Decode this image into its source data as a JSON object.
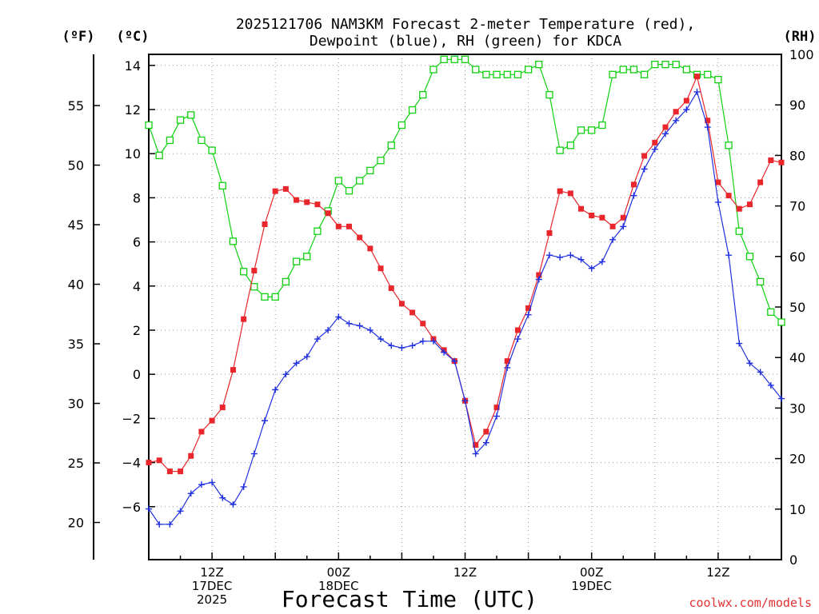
{
  "chart_data": {
    "type": "line",
    "title_lines": [
      "2025121706 NAM3KM Forecast 2-meter Temperature (red),",
      "Dewpoint (blue), RH (green) for KDCA"
    ],
    "xlabel": "Forecast Time (UTC)",
    "credit": "coolwx.com/models",
    "colors": {
      "temperature": "#e8262b",
      "dewpoint": "#2030e0",
      "rh": "#10d010",
      "grid": "#9a9a9a",
      "credit": "#e23030"
    },
    "left_axis_f": {
      "label": "(ºF)",
      "range": [
        16.88,
        59.3
      ],
      "ticks": [
        20,
        25,
        30,
        35,
        40,
        45,
        50,
        55
      ]
    },
    "left_axis_c": {
      "label": "(ºC)",
      "range": [
        -8.4,
        14.5
      ],
      "ticks": [
        -6,
        -4,
        -2,
        0,
        2,
        4,
        6,
        8,
        10,
        12,
        14
      ]
    },
    "right_axis": {
      "label": "(RH)",
      "range": [
        0,
        100
      ],
      "ticks": [
        0,
        10,
        20,
        30,
        40,
        50,
        60,
        70,
        80,
        90,
        100
      ]
    },
    "x_range": [
      0,
      60
    ],
    "x_ticks": [
      {
        "x": 6,
        "lines": [
          "12Z",
          "17DEC",
          "2025"
        ]
      },
      {
        "x": 18,
        "lines": [
          "00Z",
          "18DEC"
        ]
      },
      {
        "x": 30,
        "lines": [
          "12Z"
        ]
      },
      {
        "x": 42,
        "lines": [
          "00Z",
          "19DEC"
        ]
      },
      {
        "x": 54,
        "lines": [
          "12Z"
        ]
      }
    ],
    "x_grid": [
      6,
      12,
      18,
      24,
      30,
      36,
      42,
      48,
      54
    ],
    "y_grid_c": [
      -6,
      -4,
      -2,
      0,
      2,
      4,
      6,
      8,
      10,
      12,
      14
    ],
    "x": [
      0,
      1,
      2,
      3,
      4,
      5,
      6,
      7,
      8,
      9,
      10,
      11,
      12,
      13,
      14,
      15,
      16,
      17,
      18,
      19,
      20,
      21,
      22,
      23,
      24,
      25,
      26,
      27,
      28,
      29,
      30,
      31,
      32,
      33,
      34,
      35,
      36,
      37,
      38,
      39,
      40,
      41,
      42,
      43,
      44,
      45,
      46,
      47,
      48,
      49,
      50,
      51,
      52,
      53,
      54,
      55,
      56,
      57,
      58,
      59,
      60
    ],
    "series": [
      {
        "name": "Temperature",
        "unit": "C",
        "marker": "filled-square",
        "values": [
          -4.0,
          -3.9,
          -4.4,
          -4.4,
          -3.7,
          -2.6,
          -2.1,
          -1.5,
          0.2,
          2.5,
          4.7,
          6.8,
          8.3,
          8.4,
          7.9,
          7.8,
          7.7,
          7.3,
          6.7,
          6.7,
          6.2,
          5.7,
          4.8,
          3.9,
          3.2,
          2.8,
          2.3,
          1.6,
          1.1,
          0.6,
          -1.2,
          -3.2,
          -2.6,
          -1.5,
          0.6,
          2.0,
          3.0,
          4.5,
          6.4,
          8.3,
          8.2,
          7.5,
          7.2,
          7.1,
          6.7,
          7.1,
          8.6,
          9.9,
          10.5,
          11.2,
          11.9,
          12.4,
          13.5,
          11.5,
          8.7,
          8.1,
          7.5,
          7.7,
          8.7,
          9.7,
          9.6
        ]
      },
      {
        "name": "Dewpoint",
        "unit": "C",
        "marker": "plus",
        "values": [
          -6.1,
          -6.8,
          -6.8,
          -6.2,
          -5.4,
          -5.0,
          -4.9,
          -5.6,
          -5.9,
          -5.1,
          -3.6,
          -2.1,
          -0.7,
          0.0,
          0.5,
          0.8,
          1.6,
          2.0,
          2.6,
          2.3,
          2.2,
          2.0,
          1.6,
          1.3,
          1.2,
          1.3,
          1.5,
          1.5,
          1.0,
          0.6,
          -1.2,
          -3.6,
          -3.1,
          -1.9,
          0.3,
          1.6,
          2.7,
          4.3,
          5.4,
          5.3,
          5.4,
          5.2,
          4.8,
          5.1,
          6.1,
          6.7,
          8.1,
          9.3,
          10.2,
          10.9,
          11.5,
          12.0,
          12.8,
          11.2,
          7.8,
          5.4,
          1.4,
          0.5,
          0.1,
          -0.5,
          -1.1
        ]
      },
      {
        "name": "RH",
        "unit": "%",
        "marker": "open-square",
        "values": [
          86,
          80,
          83,
          87,
          88,
          83,
          81,
          74,
          63,
          57,
          54,
          52,
          52,
          55,
          59,
          60,
          65,
          69,
          75,
          73,
          75,
          77,
          79,
          82,
          86,
          89,
          92,
          97,
          99,
          99,
          99,
          97,
          96,
          96,
          96,
          96,
          97,
          98,
          92,
          81,
          82,
          85,
          85,
          86,
          96,
          97,
          97,
          96,
          98,
          98,
          98,
          97,
          96,
          96,
          95,
          82,
          65,
          60,
          55,
          49,
          47
        ]
      }
    ]
  }
}
